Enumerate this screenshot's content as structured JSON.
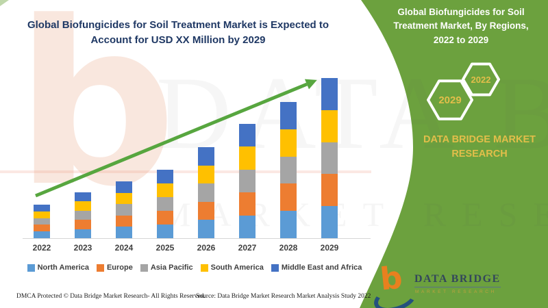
{
  "header": {
    "title": "Global Biofungicides for Soil Treatment Market is Expected to\nAccount for USD XX Million by 2029"
  },
  "chart_data": {
    "type": "bar",
    "stacked": true,
    "title": "Global Biofungicides for Soil Treatment Market is Expected to Account for USD XX Million by 2029",
    "xlabel": "",
    "ylabel": "",
    "y_axis_visible": false,
    "data_labels_shown": false,
    "grid": false,
    "legend_position": "bottom",
    "units": "relative height units (actual values shown as 'USD XX Million' placeholder)",
    "trend_arrow": {
      "present": true,
      "color": "#57A63F",
      "direction": "up-right"
    },
    "categories": [
      "2022",
      "2023",
      "2024",
      "2025",
      "2026",
      "2027",
      "2028",
      "2029"
    ],
    "totals": [
      49,
      67,
      83,
      100,
      133,
      167,
      199,
      234
    ],
    "series": [
      {
        "name": "North America",
        "color": "#5B9BD5",
        "values": [
          9.8,
          13.4,
          16.6,
          20,
          26.6,
          33.4,
          39.8,
          46.8
        ]
      },
      {
        "name": "Europe",
        "color": "#ED7D31",
        "values": [
          9.8,
          13.4,
          16.6,
          20,
          26.6,
          33.4,
          39.8,
          46.8
        ]
      },
      {
        "name": "Asia Pacific",
        "color": "#A5A5A5",
        "values": [
          9.8,
          13.4,
          16.6,
          20,
          26.6,
          33.4,
          39.8,
          46.8
        ]
      },
      {
        "name": "South America",
        "color": "#FFC000",
        "values": [
          9.8,
          13.4,
          16.6,
          20,
          26.6,
          33.4,
          39.8,
          46.8
        ]
      },
      {
        "name": "Middle East and Africa",
        "color": "#4472C4",
        "values": [
          9.8,
          13.4,
          16.6,
          20,
          26.6,
          33.4,
          39.8,
          46.8
        ]
      }
    ]
  },
  "sidebar": {
    "title": "Global Biofungicides for Soil\nTreatment Market, By Regions,\n2022 to 2029",
    "hex_back_label": "2029",
    "hex_front_label": "2022",
    "brand_text": "DATA BRIDGE MARKET\nRESEARCH",
    "colors": {
      "panel_green": "#6CA13E",
      "gold": "#E2BE4A",
      "hex_stroke": "#FFFFFF"
    }
  },
  "logo": {
    "b_letter": "b",
    "name": "DATA BRIDGE",
    "tagline": "MARKET RESEARCH"
  },
  "watermark": {
    "b_letter": "b",
    "row1": "DATA BRIDGE",
    "row2": "MARKET RESEARCH"
  },
  "footer": {
    "dmca": "DMCA Protected © Data Bridge Market Research- All Rights Reserved.",
    "source": "Source: Data Bridge Market Research Market Analysis Study 2022"
  }
}
